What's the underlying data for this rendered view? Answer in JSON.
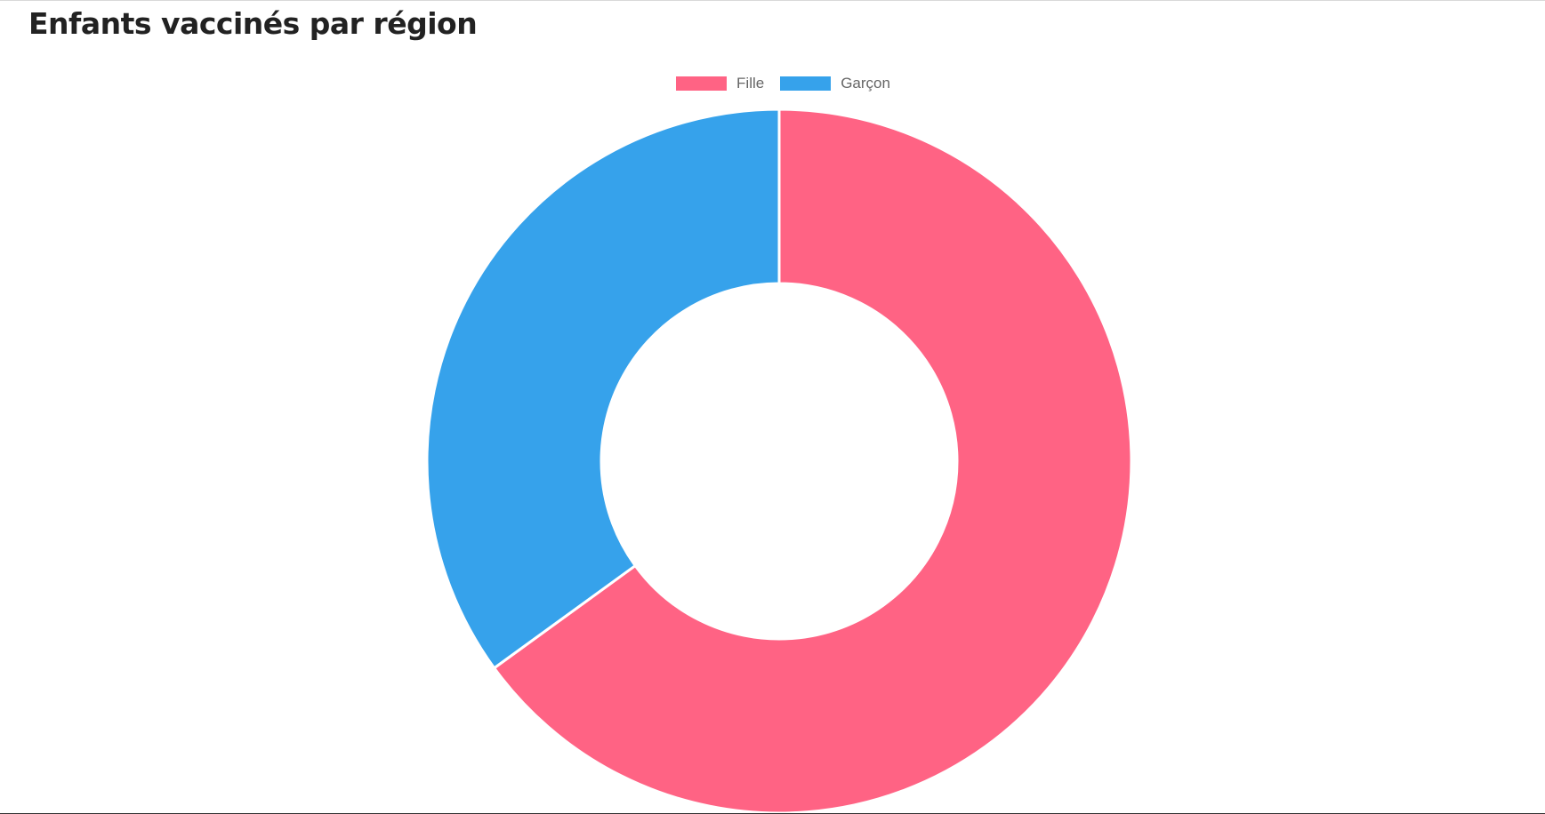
{
  "title": "Enfants vaccinés par région",
  "chart_data": {
    "type": "pie",
    "variant": "doughnut",
    "title": "Enfants vaccinés par région",
    "legend_position": "top",
    "categories": [
      "Fille",
      "Garçon"
    ],
    "values": [
      65,
      35
    ],
    "colors": [
      "#ff6384",
      "#36a2eb"
    ],
    "border_color": "#ffffff"
  }
}
